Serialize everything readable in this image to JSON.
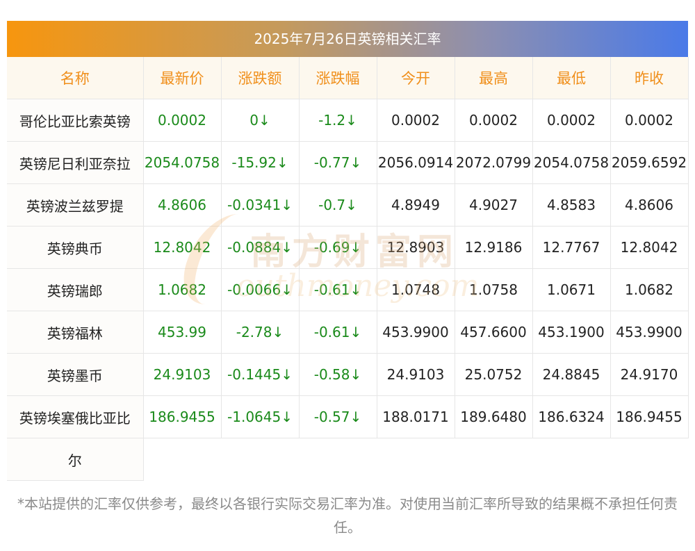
{
  "title": "2025年7月26日英镑相关汇率",
  "headers": [
    "名称",
    "最新价",
    "涨跌额",
    "涨跌幅",
    "今开",
    "最高",
    "最低",
    "昨收"
  ],
  "rows": [
    [
      "哥伦比亚比索英镑",
      "0.0002",
      "0↓",
      "-1.2↓",
      "0.0002",
      "0.0002",
      "0.0002",
      "0.0002"
    ],
    [
      "英镑尼日利亚奈拉",
      "2054.0758",
      "-15.92↓",
      "-0.77↓",
      "2056.0914",
      "2072.0799",
      "2054.0758",
      "2059.6592"
    ],
    [
      "英镑波兰兹罗提",
      "4.8606",
      "-0.0341↓",
      "-0.7↓",
      "4.8949",
      "4.9027",
      "4.8583",
      "4.8606"
    ],
    [
      "英镑典币",
      "12.8042",
      "-0.0884↓",
      "-0.69↓",
      "12.8903",
      "12.9186",
      "12.7767",
      "12.8042"
    ],
    [
      "英镑瑞郎",
      "1.0682",
      "-0.0066↓",
      "-0.61↓",
      "1.0748",
      "1.0758",
      "1.0671",
      "1.0682"
    ],
    [
      "英镑福林",
      "453.99",
      "-2.78↓",
      "-0.61↓",
      "453.9900",
      "457.6600",
      "453.1900",
      "453.9900"
    ],
    [
      "英镑墨币",
      "24.9103",
      "-0.1445↓",
      "-0.58↓",
      "24.9103",
      "25.0752",
      "24.8845",
      "24.9170"
    ],
    [
      "英镑埃塞俄比亚比",
      "186.9455",
      "-1.0645↓",
      "-0.57↓",
      "188.0171",
      "189.6480",
      "186.6324",
      "186.9455"
    ]
  ],
  "last_row_name_overflow": "尔",
  "watermark": {
    "cn": "南方财富网",
    "en": "outhmoney.com"
  },
  "footnote": "*本站提供的汇率仅供参考，最终以各银行实际交易汇率为准。对使用当前汇率所导致的结果概不承担任何责任。",
  "colors": {
    "header_text": "#f08f1b",
    "positive_green": "#1a8a1a",
    "title_gradient_start": "#f7960e",
    "title_gradient_end": "#4a7ae8"
  }
}
